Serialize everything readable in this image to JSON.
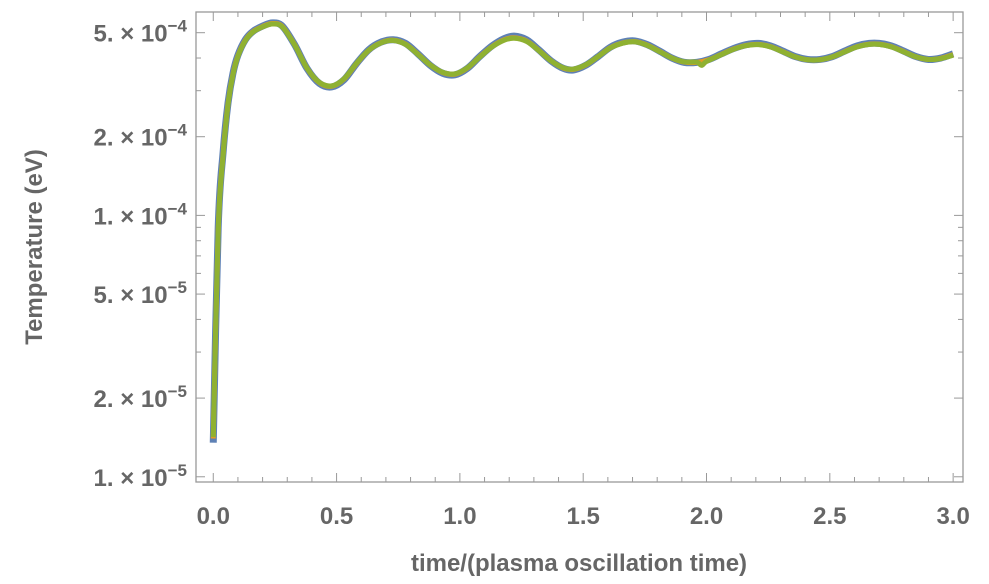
{
  "chart_data": {
    "type": "line",
    "xlabel": "time/(plasma oscillation time)",
    "ylabel": "Temperature (eV)",
    "xlim": [
      -0.07,
      3.04
    ],
    "ylim": [
      9.55e-06,
      0.0006
    ],
    "yscale": "log",
    "grid": false,
    "legend": "none",
    "x_ticks": [
      0.0,
      0.5,
      1.0,
      1.5,
      2.0,
      2.5,
      3.0
    ],
    "x_tick_labels": [
      "0.0",
      "0.5",
      "1.0",
      "1.5",
      "2.0",
      "2.5",
      "3.0"
    ],
    "y_ticks": [
      1e-05,
      2e-05,
      5e-05,
      0.0001,
      0.0002,
      0.0005
    ],
    "y_tick_labels": [
      {
        "mantissa": "1.",
        "exponent": "−5"
      },
      {
        "mantissa": "2.",
        "exponent": "−5"
      },
      {
        "mantissa": "5.",
        "exponent": "−5"
      },
      {
        "mantissa": "1.",
        "exponent": "−4"
      },
      {
        "mantissa": "2.",
        "exponent": "−4"
      },
      {
        "mantissa": "5.",
        "exponent": "−4"
      }
    ],
    "series": [
      {
        "color": "#5e81b5",
        "x": [
          0.0,
          0.02,
          0.04,
          0.06,
          0.08,
          0.1,
          0.13,
          0.16,
          0.2,
          0.24,
          0.28,
          0.33,
          0.38,
          0.43,
          0.48,
          0.53,
          0.58,
          0.63,
          0.68,
          0.73,
          0.78,
          0.83,
          0.88,
          0.93,
          0.98,
          1.03,
          1.08,
          1.13,
          1.18,
          1.22,
          1.27,
          1.32,
          1.37,
          1.42,
          1.46,
          1.51,
          1.56,
          1.61,
          1.66,
          1.71,
          1.76,
          1.81,
          1.86,
          1.91,
          1.96,
          2.01,
          2.06,
          2.11,
          2.16,
          2.21,
          2.26,
          2.31,
          2.36,
          2.41,
          2.46,
          2.51,
          2.56,
          2.61,
          2.66,
          2.7,
          2.75,
          2.8,
          2.85,
          2.9,
          2.95,
          3.0
        ],
        "y": [
          1.35e-05,
          9e-05,
          0.000175,
          0.00027,
          0.00035,
          0.00041,
          0.00047,
          0.000505,
          0.00053,
          0.000545,
          0.00053,
          0.00045,
          0.000365,
          0.00032,
          0.00031,
          0.00033,
          0.00038,
          0.00043,
          0.00046,
          0.00047,
          0.000455,
          0.000415,
          0.000375,
          0.00035,
          0.000345,
          0.000365,
          0.000405,
          0.000445,
          0.000475,
          0.000485,
          0.00047,
          0.00043,
          0.00039,
          0.000365,
          0.00036,
          0.000375,
          0.000405,
          0.00044,
          0.00046,
          0.000465,
          0.00045,
          0.000425,
          0.0004,
          0.000385,
          0.000385,
          0.000395,
          0.000415,
          0.000435,
          0.00045,
          0.000455,
          0.000445,
          0.000425,
          0.000405,
          0.000395,
          0.000395,
          0.000405,
          0.000425,
          0.000445,
          0.000455,
          0.000455,
          0.000445,
          0.000425,
          0.000405,
          0.000395,
          0.0004,
          0.000415
        ]
      },
      {
        "color": "#e19c24",
        "x": [
          0.0,
          0.02,
          0.04,
          0.06,
          0.08,
          0.1,
          0.13,
          0.16,
          0.2,
          0.24,
          0.28,
          0.33,
          0.38,
          0.43,
          0.48,
          0.53,
          0.58,
          0.63,
          0.68,
          0.73,
          0.78,
          0.83,
          0.88,
          0.93,
          0.98,
          1.03,
          1.08,
          1.13,
          1.18,
          1.22,
          1.27,
          1.32,
          1.37,
          1.42,
          1.46,
          1.51,
          1.56,
          1.61,
          1.66,
          1.71,
          1.76,
          1.81,
          1.86,
          1.91,
          1.96,
          2.01,
          2.06,
          2.11,
          2.16,
          2.21,
          2.26,
          2.31,
          2.36,
          2.41,
          2.46,
          2.51,
          2.56,
          2.61,
          2.66,
          2.7,
          2.75,
          2.8,
          2.85,
          2.9,
          2.95,
          3.0
        ],
        "y": [
          1.4e-05,
          8.8e-05,
          0.000172,
          0.000268,
          0.000348,
          0.000408,
          0.000468,
          0.000504,
          0.000528,
          0.000542,
          0.000528,
          0.00045,
          0.000366,
          0.000322,
          0.000312,
          0.000332,
          0.00038,
          0.000428,
          0.000458,
          0.000468,
          0.000452,
          0.000414,
          0.000376,
          0.000352,
          0.000347,
          0.000366,
          0.000404,
          0.000442,
          0.00047,
          0.000478,
          0.000465,
          0.000428,
          0.00039,
          0.000366,
          0.000362,
          0.000376,
          0.000405,
          0.000438,
          0.000457,
          0.000462,
          0.000448,
          0.000424,
          0.0004,
          0.000386,
          0.000385,
          0.000394,
          0.000413,
          0.000433,
          0.000447,
          0.000451,
          0.000442,
          0.000423,
          0.000404,
          0.000394,
          0.000394,
          0.000404,
          0.000423,
          0.000442,
          0.000452,
          0.000452,
          0.000442,
          0.000423,
          0.000404,
          0.000395,
          0.000399,
          0.000412
        ]
      },
      {
        "color": "#8fb131",
        "x": [
          0.0,
          0.02,
          0.04,
          0.06,
          0.08,
          0.1,
          0.13,
          0.16,
          0.2,
          0.24,
          0.28,
          0.33,
          0.38,
          0.43,
          0.48,
          0.53,
          0.58,
          0.63,
          0.68,
          0.73,
          0.78,
          0.83,
          0.88,
          0.93,
          0.98,
          1.03,
          1.08,
          1.13,
          1.18,
          1.22,
          1.27,
          1.32,
          1.37,
          1.42,
          1.46,
          1.51,
          1.56,
          1.61,
          1.66,
          1.71,
          1.76,
          1.81,
          1.86,
          1.91,
          1.96,
          1.98,
          2.0,
          2.06,
          2.11,
          2.16,
          2.21,
          2.26,
          2.31,
          2.36,
          2.41,
          2.46,
          2.51,
          2.56,
          2.61,
          2.66,
          2.7,
          2.75,
          2.8,
          2.85,
          2.9,
          2.95,
          3.0
        ],
        "y": [
          1.42e-05,
          8.7e-05,
          0.00017,
          0.000266,
          0.000346,
          0.000406,
          0.000466,
          0.000502,
          0.000526,
          0.00054,
          0.000526,
          0.000449,
          0.000366,
          0.000323,
          0.000313,
          0.000333,
          0.000381,
          0.000428,
          0.000457,
          0.000467,
          0.000451,
          0.000413,
          0.000376,
          0.000353,
          0.000348,
          0.000367,
          0.000403,
          0.000441,
          0.000468,
          0.000476,
          0.000463,
          0.000427,
          0.00039,
          0.000367,
          0.000363,
          0.000377,
          0.000405,
          0.000437,
          0.000456,
          0.000461,
          0.000447,
          0.000423,
          0.0004,
          0.000387,
          0.000386,
          0.000375,
          0.000388,
          0.000412,
          0.000432,
          0.000446,
          0.00045,
          0.000441,
          0.000422,
          0.000404,
          0.000394,
          0.000394,
          0.000404,
          0.000422,
          0.000441,
          0.000451,
          0.000451,
          0.000441,
          0.000422,
          0.000404,
          0.000395,
          0.000398,
          0.00041
        ]
      }
    ]
  }
}
